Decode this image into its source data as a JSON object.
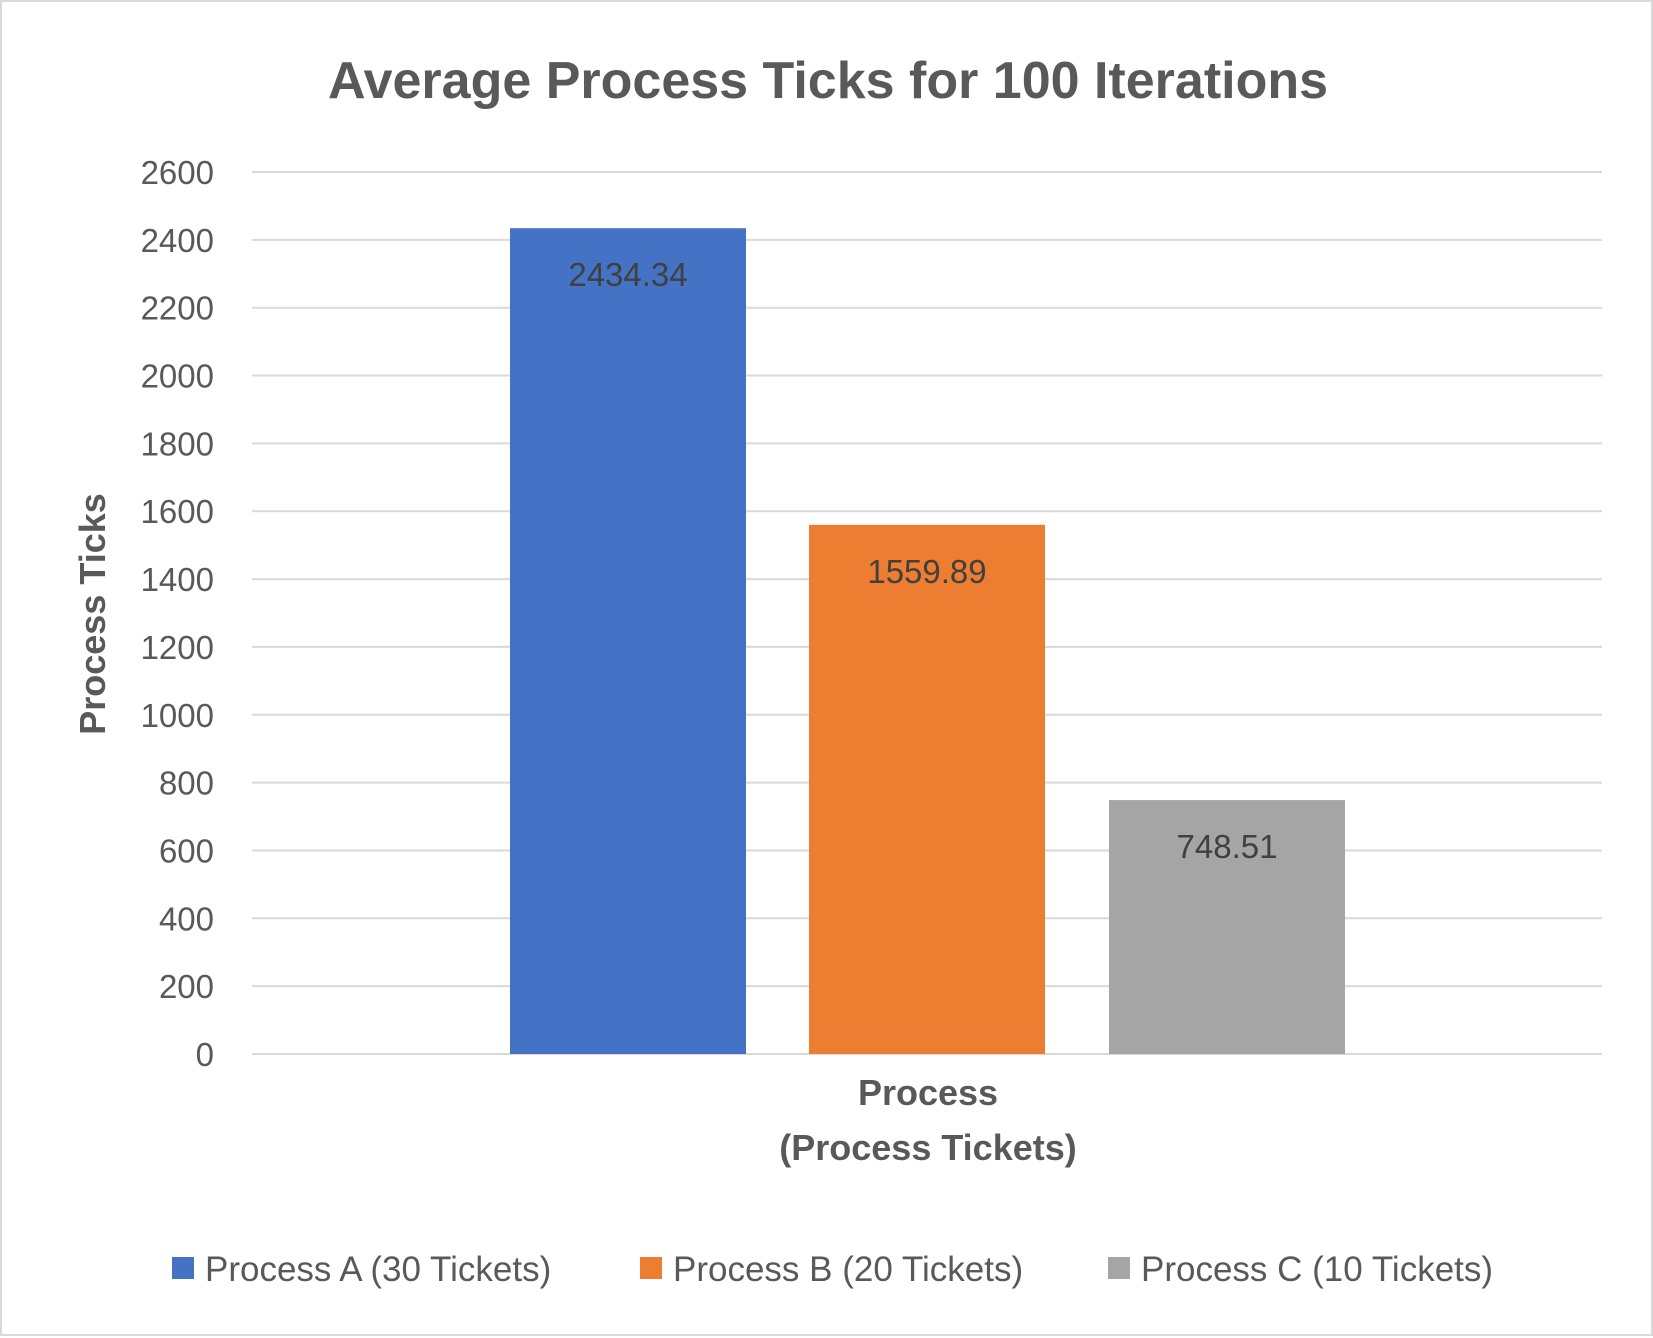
{
  "chart_data": {
    "type": "bar",
    "title": "Average Process Ticks for 100 Iterations",
    "xlabel_lines": [
      "Process",
      "(Process Tickets)"
    ],
    "ylabel": "Process Ticks",
    "ylim": [
      0,
      2600
    ],
    "yticks": [
      0,
      200,
      400,
      600,
      800,
      1000,
      1200,
      1400,
      1600,
      1800,
      2000,
      2200,
      2400,
      2600
    ],
    "grid": true,
    "legend_position": "bottom",
    "series": [
      {
        "name": "Process A (30 Tickets)",
        "value": 2434.34,
        "label": "2434.34",
        "color": "#4472C4"
      },
      {
        "name": "Process B (20 Tickets)",
        "value": 1559.89,
        "label": "1559.89",
        "color": "#ED7D31"
      },
      {
        "name": "Process C (10 Tickets)",
        "value": 748.51,
        "label": "748.51",
        "color": "#A5A5A5"
      }
    ]
  }
}
